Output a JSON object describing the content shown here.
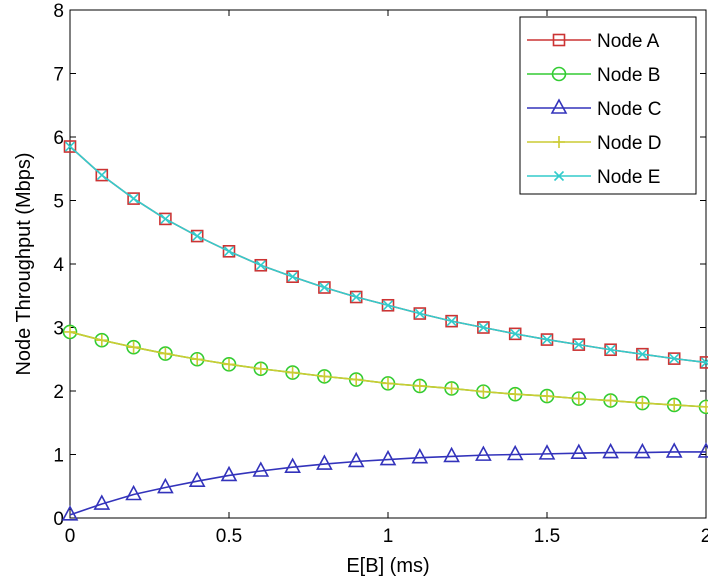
{
  "chart_data": {
    "type": "line",
    "title": "",
    "xlabel": "E[B] (ms)",
    "ylabel": "Node Throughput (Mbps)",
    "xlim": [
      0,
      2
    ],
    "ylim": [
      0,
      8
    ],
    "x_ticks": [
      0,
      0.5,
      1,
      1.5,
      2
    ],
    "y_ticks": [
      0,
      1,
      2,
      3,
      4,
      5,
      6,
      7,
      8
    ],
    "grid": false,
    "legend_position": "top-right",
    "x": [
      0,
      0.1,
      0.2,
      0.3,
      0.4,
      0.5,
      0.6,
      0.7,
      0.8,
      0.9,
      1.0,
      1.1,
      1.2,
      1.3,
      1.4,
      1.5,
      1.6,
      1.7,
      1.8,
      1.9,
      2.0
    ],
    "series": [
      {
        "name": "Node A",
        "color": "#cc3333",
        "marker": "square",
        "values": [
          5.85,
          5.4,
          5.03,
          4.71,
          4.44,
          4.2,
          3.98,
          3.8,
          3.63,
          3.48,
          3.35,
          3.22,
          3.1,
          3.0,
          2.9,
          2.81,
          2.73,
          2.65,
          2.58,
          2.51,
          2.45
        ]
      },
      {
        "name": "Node B",
        "color": "#33cc33",
        "marker": "circle",
        "values": [
          2.93,
          2.8,
          2.69,
          2.59,
          2.5,
          2.42,
          2.35,
          2.29,
          2.23,
          2.18,
          2.12,
          2.08,
          2.04,
          1.99,
          1.95,
          1.92,
          1.88,
          1.85,
          1.81,
          1.78,
          1.75
        ]
      },
      {
        "name": "Node C",
        "color": "#3333bb",
        "marker": "triangle",
        "values": [
          0.05,
          0.22,
          0.37,
          0.48,
          0.58,
          0.67,
          0.74,
          0.8,
          0.85,
          0.89,
          0.92,
          0.95,
          0.97,
          0.99,
          1.0,
          1.01,
          1.02,
          1.03,
          1.03,
          1.04,
          1.04
        ]
      },
      {
        "name": "Node D",
        "color": "#cccc33",
        "marker": "plus",
        "values": [
          2.93,
          2.8,
          2.69,
          2.59,
          2.5,
          2.42,
          2.35,
          2.29,
          2.23,
          2.18,
          2.12,
          2.08,
          2.04,
          1.99,
          1.95,
          1.92,
          1.88,
          1.85,
          1.81,
          1.78,
          1.75
        ]
      },
      {
        "name": "Node E",
        "color": "#33cccc",
        "marker": "x",
        "values": [
          5.85,
          5.4,
          5.03,
          4.71,
          4.44,
          4.2,
          3.98,
          3.8,
          3.63,
          3.48,
          3.35,
          3.22,
          3.1,
          3.0,
          2.9,
          2.81,
          2.73,
          2.65,
          2.58,
          2.51,
          2.45
        ]
      }
    ]
  }
}
